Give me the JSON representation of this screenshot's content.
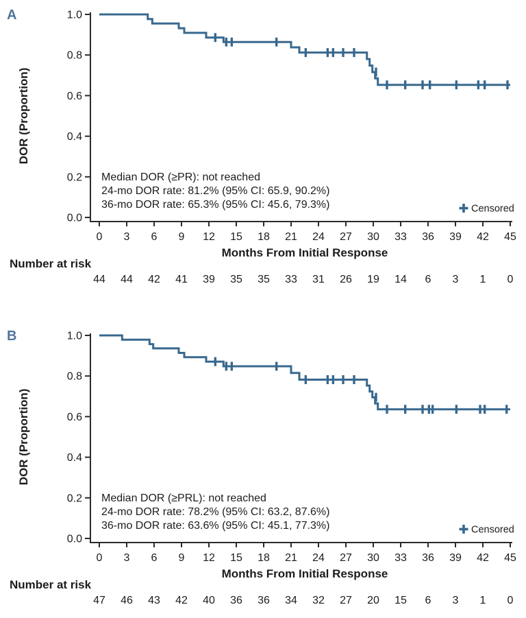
{
  "colors": {
    "curve": "#38688e",
    "panel_label": "#50759a",
    "axis": "#2a2a2a",
    "text": "#1c1c1c"
  },
  "chart_data": [
    {
      "panel": "A",
      "type": "line",
      "subtype": "kaplan-meier-step",
      "xlabel": "Months From Initial Response",
      "ylabel": "DOR (Proportion)",
      "xlim": [
        0,
        45
      ],
      "ylim": [
        0.0,
        1.0
      ],
      "xticks": [
        0,
        3,
        6,
        9,
        12,
        15,
        18,
        21,
        24,
        27,
        30,
        33,
        36,
        39,
        42,
        45
      ],
      "ytick_labels": [
        "1.0",
        "0.8",
        "0.6",
        "0.4",
        "0.2",
        "0.0"
      ],
      "grid": false,
      "legend": [
        {
          "marker": "plus",
          "label": "Censored",
          "position": "inside-bottom-right"
        }
      ],
      "annotation": [
        "Median DOR (≥PR): not reached",
        "24-mo DOR rate: 81.2% (95% CI: 65.9, 90.2%)",
        "36-mo DOR rate: 65.3% (95% CI: 45.6, 79.3%)"
      ],
      "steps": [
        [
          0,
          1.0
        ],
        [
          5.3,
          0.977
        ],
        [
          5.8,
          0.955
        ],
        [
          8.7,
          0.932
        ],
        [
          9.3,
          0.909
        ],
        [
          11.7,
          0.886
        ],
        [
          13.6,
          0.864
        ],
        [
          21.0,
          0.838
        ],
        [
          21.9,
          0.812
        ],
        [
          29.3,
          0.78
        ],
        [
          29.6,
          0.748
        ],
        [
          29.9,
          0.716
        ],
        [
          30.2,
          0.685
        ],
        [
          30.5,
          0.653
        ],
        [
          45,
          0.653
        ]
      ],
      "censored": [
        [
          12.7,
          0.886
        ],
        [
          13.9,
          0.864
        ],
        [
          14.5,
          0.864
        ],
        [
          19.4,
          0.864
        ],
        [
          22.6,
          0.812
        ],
        [
          25.0,
          0.812
        ],
        [
          25.6,
          0.812
        ],
        [
          26.7,
          0.812
        ],
        [
          27.9,
          0.812
        ],
        [
          30.3,
          0.716
        ],
        [
          31.5,
          0.653
        ],
        [
          33.5,
          0.653
        ],
        [
          35.4,
          0.653
        ],
        [
          36.2,
          0.653
        ],
        [
          39.1,
          0.653
        ],
        [
          41.5,
          0.653
        ],
        [
          42.2,
          0.653
        ],
        [
          44.7,
          0.653
        ]
      ],
      "risk_label": "Number at risk",
      "risk_counts": [
        "44",
        "44",
        "42",
        "41",
        "39",
        "35",
        "35",
        "33",
        "31",
        "26",
        "19",
        "14",
        "6",
        "3",
        "1",
        "0"
      ]
    },
    {
      "panel": "B",
      "type": "line",
      "subtype": "kaplan-meier-step",
      "xlabel": "Months From Initial Response",
      "ylabel": "DOR (Proportion)",
      "xlim": [
        0,
        45
      ],
      "ylim": [
        0.0,
        1.0
      ],
      "xticks": [
        0,
        3,
        6,
        9,
        12,
        15,
        18,
        21,
        24,
        27,
        30,
        33,
        36,
        39,
        42,
        45
      ],
      "ytick_labels": [
        "1.0",
        "0.8",
        "0.6",
        "0.4",
        "0.2",
        "0.0"
      ],
      "grid": false,
      "legend": [
        {
          "marker": "plus",
          "label": "Censored",
          "position": "inside-bottom-right"
        }
      ],
      "annotation": [
        "Median DOR (≥PRL): not reached",
        "24-mo DOR rate: 78.2% (95% CI: 63.2, 87.6%)",
        "36-mo DOR rate: 63.6% (95% CI: 45.1, 77.3%)"
      ],
      "steps": [
        [
          0,
          1.0
        ],
        [
          2.5,
          0.979
        ],
        [
          5.5,
          0.957
        ],
        [
          5.9,
          0.936
        ],
        [
          8.7,
          0.914
        ],
        [
          9.3,
          0.893
        ],
        [
          11.7,
          0.871
        ],
        [
          13.6,
          0.848
        ],
        [
          21.0,
          0.815
        ],
        [
          21.9,
          0.782
        ],
        [
          29.3,
          0.753
        ],
        [
          29.6,
          0.724
        ],
        [
          29.9,
          0.695
        ],
        [
          30.2,
          0.665
        ],
        [
          30.5,
          0.636
        ],
        [
          45,
          0.636
        ]
      ],
      "censored": [
        [
          12.7,
          0.871
        ],
        [
          13.9,
          0.848
        ],
        [
          14.5,
          0.848
        ],
        [
          19.4,
          0.848
        ],
        [
          22.6,
          0.782
        ],
        [
          25.0,
          0.782
        ],
        [
          25.6,
          0.782
        ],
        [
          26.7,
          0.782
        ],
        [
          27.9,
          0.782
        ],
        [
          30.3,
          0.695
        ],
        [
          31.5,
          0.636
        ],
        [
          33.5,
          0.636
        ],
        [
          35.4,
          0.636
        ],
        [
          36.1,
          0.636
        ],
        [
          36.5,
          0.636
        ],
        [
          39.1,
          0.636
        ],
        [
          41.7,
          0.636
        ],
        [
          42.2,
          0.636
        ],
        [
          44.6,
          0.636
        ]
      ],
      "risk_label": "Number at risk",
      "risk_counts": [
        "47",
        "46",
        "43",
        "42",
        "40",
        "36",
        "36",
        "34",
        "32",
        "27",
        "20",
        "15",
        "6",
        "3",
        "1",
        "0"
      ]
    }
  ]
}
